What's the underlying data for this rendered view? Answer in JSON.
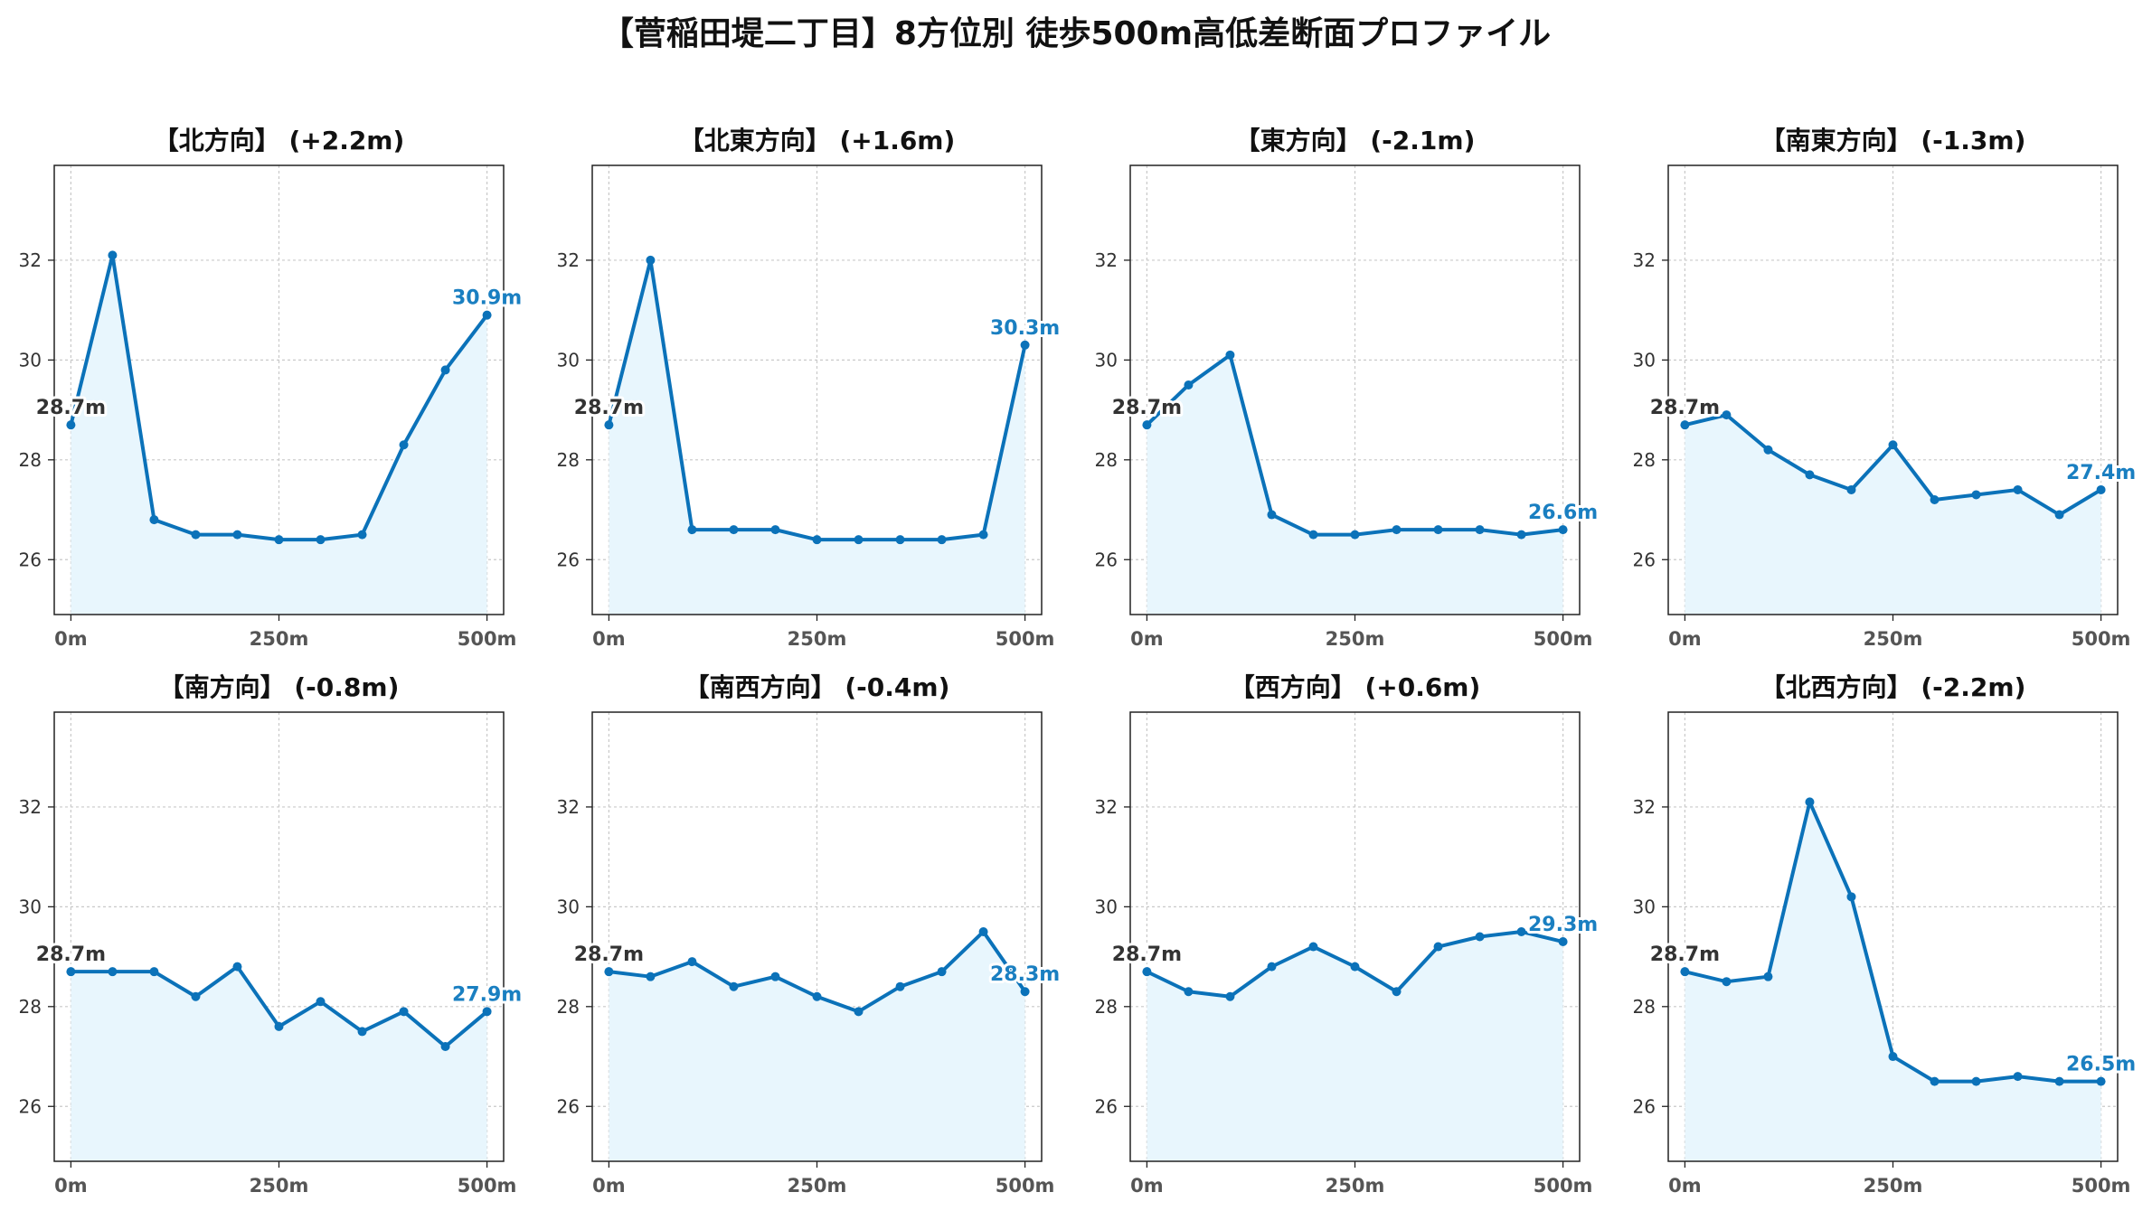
{
  "suptitle": "【菅稲田堤二丁目】8方位別 徒歩500m高低差断面プロファイル",
  "colors": {
    "line": "#0b72b9",
    "fill": "#e8f6fd",
    "start_label": "#333333",
    "end_label": "#1a7fc1",
    "grid": "#c9c9c9"
  },
  "chart_data": [
    {
      "type": "line",
      "title": "【北方向】 (+2.2m)",
      "x": [
        0,
        50,
        100,
        150,
        200,
        250,
        300,
        350,
        400,
        450,
        500
      ],
      "values": [
        28.7,
        32.1,
        26.8,
        26.5,
        26.5,
        26.4,
        26.4,
        26.5,
        28.3,
        29.8,
        30.9
      ],
      "start_label": "28.7m",
      "end_label": "30.9m",
      "xticks": [
        "0m",
        "250m",
        "500m"
      ],
      "yticks": [
        "26",
        "28",
        "30",
        "32"
      ],
      "xlim": [
        -20,
        520
      ],
      "ylim": [
        24.9,
        33.9
      ],
      "grid": true
    },
    {
      "type": "line",
      "title": "【北東方向】 (+1.6m)",
      "x": [
        0,
        50,
        100,
        150,
        200,
        250,
        300,
        350,
        400,
        450,
        500
      ],
      "values": [
        28.7,
        32.0,
        26.6,
        26.6,
        26.6,
        26.4,
        26.4,
        26.4,
        26.4,
        26.5,
        30.3
      ],
      "start_label": "28.7m",
      "end_label": "30.3m",
      "xticks": [
        "0m",
        "250m",
        "500m"
      ],
      "yticks": [
        "26",
        "28",
        "30",
        "32"
      ],
      "xlim": [
        -20,
        520
      ],
      "ylim": [
        24.9,
        33.9
      ],
      "grid": true
    },
    {
      "type": "line",
      "title": "【東方向】 (-2.1m)",
      "x": [
        0,
        50,
        100,
        150,
        200,
        250,
        300,
        350,
        400,
        450,
        500
      ],
      "values": [
        28.7,
        29.5,
        30.1,
        26.9,
        26.5,
        26.5,
        26.6,
        26.6,
        26.6,
        26.5,
        26.6
      ],
      "start_label": "28.7m",
      "end_label": "26.6m",
      "xticks": [
        "0m",
        "250m",
        "500m"
      ],
      "yticks": [
        "26",
        "28",
        "30",
        "32"
      ],
      "xlim": [
        -20,
        520
      ],
      "ylim": [
        24.9,
        33.9
      ],
      "grid": true
    },
    {
      "type": "line",
      "title": "【南東方向】 (-1.3m)",
      "x": [
        0,
        50,
        100,
        150,
        200,
        250,
        300,
        350,
        400,
        450,
        500
      ],
      "values": [
        28.7,
        28.9,
        28.2,
        27.7,
        27.4,
        28.3,
        27.2,
        27.3,
        27.4,
        26.9,
        27.4
      ],
      "start_label": "28.7m",
      "end_label": "27.4m",
      "xticks": [
        "0m",
        "250m",
        "500m"
      ],
      "yticks": [
        "26",
        "28",
        "30",
        "32"
      ],
      "xlim": [
        -20,
        520
      ],
      "ylim": [
        24.9,
        33.9
      ],
      "grid": true
    },
    {
      "type": "line",
      "title": "【南方向】 (-0.8m)",
      "x": [
        0,
        50,
        100,
        150,
        200,
        250,
        300,
        350,
        400,
        450,
        500
      ],
      "values": [
        28.7,
        28.7,
        28.7,
        28.2,
        28.8,
        27.6,
        28.1,
        27.5,
        27.9,
        27.2,
        27.9
      ],
      "start_label": "28.7m",
      "end_label": "27.9m",
      "xticks": [
        "0m",
        "250m",
        "500m"
      ],
      "yticks": [
        "26",
        "28",
        "30",
        "32"
      ],
      "xlim": [
        -20,
        520
      ],
      "ylim": [
        24.9,
        33.9
      ],
      "grid": true
    },
    {
      "type": "line",
      "title": "【南西方向】 (-0.4m)",
      "x": [
        0,
        50,
        100,
        150,
        200,
        250,
        300,
        350,
        400,
        450,
        500
      ],
      "values": [
        28.7,
        28.6,
        28.9,
        28.4,
        28.6,
        28.2,
        27.9,
        28.4,
        28.7,
        29.5,
        28.3
      ],
      "start_label": "28.7m",
      "end_label": "28.3m",
      "xticks": [
        "0m",
        "250m",
        "500m"
      ],
      "yticks": [
        "26",
        "28",
        "30",
        "32"
      ],
      "xlim": [
        -20,
        520
      ],
      "ylim": [
        24.9,
        33.9
      ],
      "grid": true
    },
    {
      "type": "line",
      "title": "【西方向】 (+0.6m)",
      "x": [
        0,
        50,
        100,
        150,
        200,
        250,
        300,
        350,
        400,
        450,
        500
      ],
      "values": [
        28.7,
        28.3,
        28.2,
        28.8,
        29.2,
        28.8,
        28.3,
        29.2,
        29.4,
        29.5,
        29.3
      ],
      "start_label": "28.7m",
      "end_label": "29.3m",
      "xticks": [
        "0m",
        "250m",
        "500m"
      ],
      "yticks": [
        "26",
        "28",
        "30",
        "32"
      ],
      "xlim": [
        -20,
        520
      ],
      "ylim": [
        24.9,
        33.9
      ],
      "grid": true
    },
    {
      "type": "line",
      "title": "【北西方向】 (-2.2m)",
      "x": [
        0,
        50,
        100,
        150,
        200,
        250,
        300,
        350,
        400,
        450,
        500
      ],
      "values": [
        28.7,
        28.5,
        28.6,
        32.1,
        30.2,
        27.0,
        26.5,
        26.5,
        26.6,
        26.5,
        26.5
      ],
      "start_label": "28.7m",
      "end_label": "26.5m",
      "xticks": [
        "0m",
        "250m",
        "500m"
      ],
      "yticks": [
        "26",
        "28",
        "30",
        "32"
      ],
      "xlim": [
        -20,
        520
      ],
      "ylim": [
        24.9,
        33.9
      ],
      "grid": true
    }
  ]
}
